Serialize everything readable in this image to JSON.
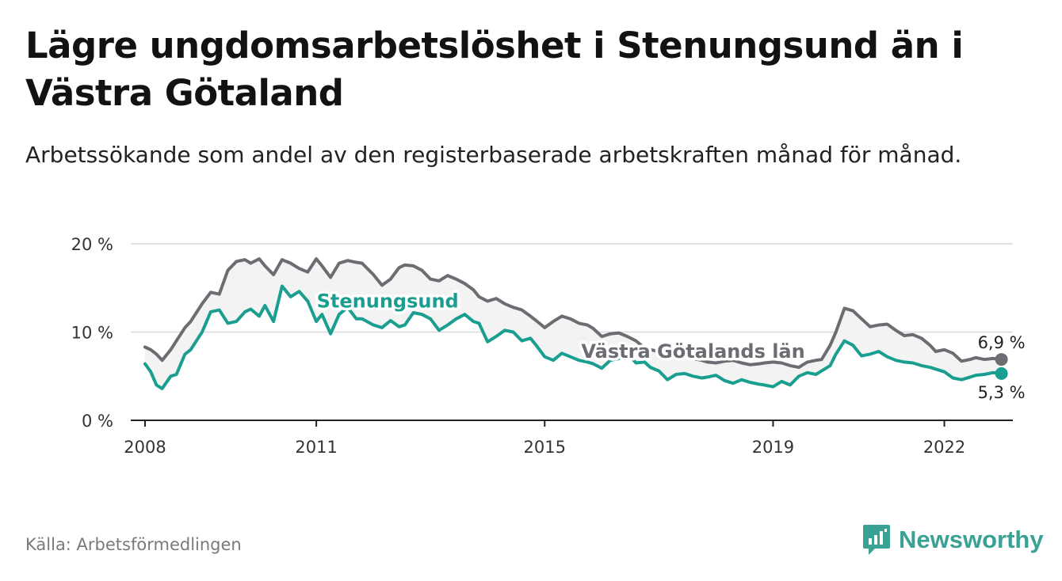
{
  "header": {
    "title": "Lägre ungdomsarbetslöshet i Stenungsund än i Västra Götaland",
    "subtitle": "Arbetssökande som andel av den registerbaserade arbetskraften månad för månad."
  },
  "footer": {
    "source": "Källa: Arbetsförmedlingen",
    "brand": "Newsworthy",
    "brand_icon": "newsworthy-logo-icon"
  },
  "colors": {
    "stenungsund": "#1a9e8f",
    "vastra_gotaland": "#6d6c72",
    "gap_fill": "#f3f3f3",
    "grid": "#d9d9d9",
    "axis": "#222222",
    "brand": "#3aa195"
  },
  "chart_data": {
    "type": "line",
    "title": "Lägre ungdomsarbetslöshet i Stenungsund än i Västra Götaland",
    "xlabel": "",
    "ylabel": "",
    "ylim": [
      0,
      20
    ],
    "xlim": [
      2007.75,
      2023.2
    ],
    "y_ticks": [
      0,
      10,
      20
    ],
    "y_tick_labels": [
      "0 %",
      "10 %",
      "20 %"
    ],
    "x_ticks": [
      2008,
      2011,
      2015,
      2019,
      2022
    ],
    "x_tick_labels": [
      "2008",
      "2011",
      "2015",
      "2019",
      "2022"
    ],
    "grid": true,
    "series": [
      {
        "name": "Västra Götalands län",
        "label": "Västra Götalands län",
        "end_label": "6,9 %",
        "x": [
          2008.0,
          2008.1,
          2008.2,
          2008.3,
          2008.45,
          2008.55,
          2008.7,
          2008.8,
          2009.0,
          2009.15,
          2009.3,
          2009.45,
          2009.6,
          2009.75,
          2009.85,
          2010.0,
          2010.1,
          2010.25,
          2010.4,
          2010.55,
          2010.7,
          2010.85,
          2011.0,
          2011.1,
          2011.25,
          2011.4,
          2011.55,
          2011.7,
          2011.8,
          2012.0,
          2012.15,
          2012.3,
          2012.45,
          2012.55,
          2012.7,
          2012.85,
          2013.0,
          2013.15,
          2013.3,
          2013.45,
          2013.6,
          2013.75,
          2013.85,
          2014.0,
          2014.15,
          2014.3,
          2014.45,
          2014.6,
          2014.75,
          2014.85,
          2015.0,
          2015.15,
          2015.3,
          2015.45,
          2015.6,
          2015.75,
          2015.85,
          2016.0,
          2016.15,
          2016.3,
          2016.45,
          2016.6,
          2016.75,
          2016.85,
          2017.0,
          2017.15,
          2017.3,
          2017.45,
          2017.6,
          2017.75,
          2017.85,
          2018.0,
          2018.15,
          2018.3,
          2018.45,
          2018.6,
          2018.75,
          2018.85,
          2019.0,
          2019.15,
          2019.3,
          2019.45,
          2019.6,
          2019.75,
          2019.85,
          2020.0,
          2020.1,
          2020.25,
          2020.4,
          2020.55,
          2020.7,
          2020.85,
          2021.0,
          2021.15,
          2021.3,
          2021.45,
          2021.6,
          2021.75,
          2021.85,
          2022.0,
          2022.15,
          2022.3,
          2022.45,
          2022.55,
          2022.7,
          2022.85,
          2023.0
        ],
        "y": [
          8.3,
          8.0,
          7.5,
          6.8,
          8.0,
          9.0,
          10.5,
          11.2,
          13.2,
          14.5,
          14.3,
          17.0,
          18.0,
          18.2,
          17.8,
          18.3,
          17.5,
          16.5,
          18.2,
          17.8,
          17.2,
          16.8,
          18.3,
          17.5,
          16.2,
          17.8,
          18.1,
          17.9,
          17.8,
          16.5,
          15.3,
          16.0,
          17.3,
          17.6,
          17.5,
          17.0,
          16.0,
          15.8,
          16.4,
          16.0,
          15.5,
          14.8,
          14.0,
          13.5,
          13.8,
          13.2,
          12.8,
          12.5,
          11.8,
          11.3,
          10.5,
          11.2,
          11.8,
          11.5,
          11.0,
          10.8,
          10.4,
          9.5,
          9.8,
          9.9,
          9.5,
          9.0,
          8.2,
          8.0,
          7.8,
          7.6,
          7.5,
          7.3,
          7.0,
          6.8,
          6.6,
          6.5,
          6.7,
          6.8,
          6.5,
          6.3,
          6.4,
          6.5,
          6.6,
          6.5,
          6.2,
          6.0,
          6.6,
          6.8,
          6.9,
          8.5,
          10.0,
          12.7,
          12.4,
          11.5,
          10.6,
          10.8,
          10.9,
          10.2,
          9.6,
          9.7,
          9.3,
          8.5,
          7.8,
          8.0,
          7.6,
          6.7,
          6.9,
          7.1,
          6.9,
          7.0,
          6.9
        ]
      },
      {
        "name": "Stenungsund",
        "label": "Stenungsund",
        "end_label": "5,3 %",
        "x": [
          2008.0,
          2008.1,
          2008.2,
          2008.3,
          2008.45,
          2008.55,
          2008.7,
          2008.8,
          2009.0,
          2009.15,
          2009.3,
          2009.45,
          2009.6,
          2009.75,
          2009.85,
          2010.0,
          2010.1,
          2010.25,
          2010.4,
          2010.55,
          2010.7,
          2010.85,
          2011.0,
          2011.1,
          2011.25,
          2011.4,
          2011.55,
          2011.7,
          2011.8,
          2012.0,
          2012.15,
          2012.3,
          2012.45,
          2012.55,
          2012.7,
          2012.85,
          2013.0,
          2013.15,
          2013.3,
          2013.45,
          2013.6,
          2013.75,
          2013.85,
          2014.0,
          2014.15,
          2014.3,
          2014.45,
          2014.6,
          2014.75,
          2014.85,
          2015.0,
          2015.15,
          2015.3,
          2015.45,
          2015.6,
          2015.75,
          2015.85,
          2016.0,
          2016.15,
          2016.3,
          2016.45,
          2016.6,
          2016.75,
          2016.85,
          2017.0,
          2017.15,
          2017.3,
          2017.45,
          2017.6,
          2017.75,
          2017.85,
          2018.0,
          2018.15,
          2018.3,
          2018.45,
          2018.6,
          2018.75,
          2018.85,
          2019.0,
          2019.15,
          2019.3,
          2019.45,
          2019.6,
          2019.75,
          2019.85,
          2020.0,
          2020.1,
          2020.25,
          2020.4,
          2020.55,
          2020.7,
          2020.85,
          2021.0,
          2021.15,
          2021.3,
          2021.45,
          2021.6,
          2021.75,
          2021.85,
          2022.0,
          2022.15,
          2022.3,
          2022.45,
          2022.55,
          2022.7,
          2022.85,
          2023.0
        ],
        "y": [
          6.4,
          5.5,
          4.0,
          3.6,
          5.0,
          5.2,
          7.5,
          8.0,
          10.0,
          12.3,
          12.5,
          11.0,
          11.2,
          12.3,
          12.6,
          11.8,
          13.0,
          11.2,
          15.2,
          14.0,
          14.6,
          13.5,
          11.2,
          12.0,
          9.8,
          12.0,
          12.8,
          11.5,
          11.5,
          10.8,
          10.5,
          11.3,
          10.6,
          10.8,
          12.2,
          12.0,
          11.5,
          10.2,
          10.8,
          11.5,
          12.0,
          11.2,
          11.0,
          8.9,
          9.5,
          10.2,
          10.0,
          9.0,
          9.3,
          8.5,
          7.2,
          6.8,
          7.6,
          7.2,
          6.8,
          6.6,
          6.4,
          5.9,
          6.8,
          7.0,
          7.6,
          6.5,
          6.6,
          6.0,
          5.6,
          4.6,
          5.2,
          5.3,
          5.0,
          4.8,
          4.9,
          5.1,
          4.5,
          4.2,
          4.6,
          4.3,
          4.1,
          4.0,
          3.8,
          4.4,
          4.0,
          5.0,
          5.4,
          5.2,
          5.6,
          6.2,
          7.5,
          9.0,
          8.5,
          7.3,
          7.5,
          7.8,
          7.2,
          6.8,
          6.6,
          6.5,
          6.2,
          6.0,
          5.8,
          5.5,
          4.8,
          4.6,
          4.9,
          5.1,
          5.2,
          5.4,
          5.3
        ]
      }
    ]
  }
}
